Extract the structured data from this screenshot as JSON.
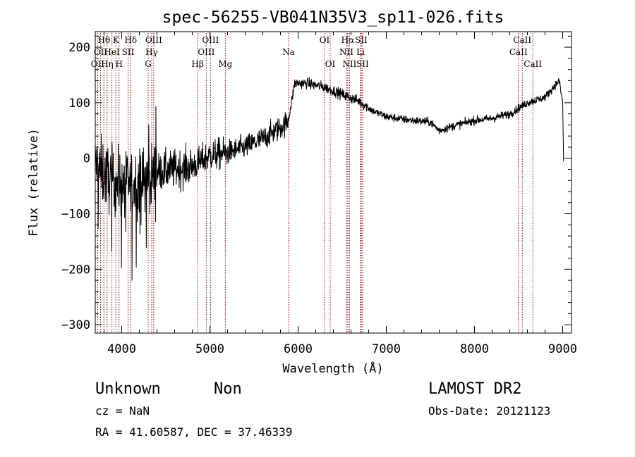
{
  "chart_data": {
    "type": "line",
    "title": "spec-56255-VB041N35V3_sp11-026.fits",
    "xlabel": "Wavelength (Å)",
    "ylabel": "Flux (relative)",
    "xlim": [
      3700,
      9100
    ],
    "ylim": [
      -315,
      228
    ],
    "x_ticks": [
      4000,
      5000,
      6000,
      7000,
      8000,
      9000
    ],
    "y_ticks": [
      -300,
      -200,
      -100,
      0,
      100,
      200
    ],
    "x_tick_labels": [
      "4000",
      "5000",
      "6000",
      "7000",
      "8000",
      "9000"
    ],
    "y_tick_labels": [
      "−300",
      "−200",
      "−100",
      "0",
      "100",
      "200"
    ],
    "grid": false,
    "series": [
      {
        "color": "#000000",
        "anchors": [
          [
            3700,
            -10
          ],
          [
            3800,
            -30
          ],
          [
            3900,
            -40
          ],
          [
            4000,
            -50
          ],
          [
            4200,
            -45
          ],
          [
            4400,
            -25
          ],
          [
            4600,
            -20
          ],
          [
            4800,
            -15
          ],
          [
            5000,
            5
          ],
          [
            5200,
            10
          ],
          [
            5400,
            20
          ],
          [
            5600,
            35
          ],
          [
            5800,
            55
          ],
          [
            5880,
            65
          ],
          [
            5920,
            95
          ],
          [
            5960,
            135
          ],
          [
            6100,
            135
          ],
          [
            6300,
            128
          ],
          [
            6500,
            115
          ],
          [
            6700,
            102
          ],
          [
            6850,
            85
          ],
          [
            7000,
            75
          ],
          [
            7200,
            70
          ],
          [
            7500,
            65
          ],
          [
            7600,
            50
          ],
          [
            7800,
            60
          ],
          [
            8000,
            68
          ],
          [
            8200,
            72
          ],
          [
            8400,
            80
          ],
          [
            8600,
            100
          ],
          [
            8800,
            110
          ],
          [
            8960,
            140
          ],
          [
            9000,
            100
          ],
          [
            9010,
            -5
          ]
        ],
        "noise_segments": [
          [
            3700,
            4400,
            55
          ],
          [
            4400,
            4800,
            32
          ],
          [
            4800,
            5200,
            26
          ],
          [
            5200,
            5900,
            20
          ],
          [
            5900,
            6800,
            9
          ],
          [
            6800,
            9010,
            7
          ]
        ]
      }
    ],
    "spectral_lines": [
      {
        "x": 3727,
        "label": "OII",
        "row": 3,
        "color": "#8b0000"
      },
      {
        "x": 3760,
        "label": "OII",
        "row": 2,
        "color": "#8b0000"
      },
      {
        "x": 3798,
        "label": "Hθ",
        "row": 1,
        "color": "#8b0000"
      },
      {
        "x": 3835,
        "label": "Hη",
        "row": 3,
        "color": "#8b0000"
      },
      {
        "x": 3889,
        "label": "HeI",
        "row": 2,
        "color": "#8b0000"
      },
      {
        "x": 3934,
        "label": "K",
        "row": 1,
        "color": "#8b0000"
      },
      {
        "x": 3970,
        "label": "H",
        "row": 3,
        "color": "#8b0000"
      },
      {
        "x": 4072,
        "label": "SII",
        "row": 2,
        "color": "#8b0000"
      },
      {
        "x": 4102,
        "label": "Hδ",
        "row": 1,
        "color": "#8b0000"
      },
      {
        "x": 4300,
        "label": "G",
        "row": 3,
        "color": "#8b0000"
      },
      {
        "x": 4340,
        "label": "Hγ",
        "row": 2,
        "color": "#8b0000"
      },
      {
        "x": 4363,
        "label": "OIII",
        "row": 1,
        "color": "#8b0000"
      },
      {
        "x": 4861,
        "label": "Hβ",
        "row": 3,
        "color": "#8b0000"
      },
      {
        "x": 4959,
        "label": "OIII",
        "row": 2,
        "color": "#8b0000"
      },
      {
        "x": 5007,
        "label": "OIII",
        "row": 1,
        "color": "#8b0000"
      },
      {
        "x": 5175,
        "label": "Mg",
        "row": 3,
        "color": "#8b0000"
      },
      {
        "x": 5893,
        "label": "Na",
        "row": 2,
        "color": "#8b0000"
      },
      {
        "x": 6300,
        "label": "OI",
        "row": 1,
        "color": "#8b0000"
      },
      {
        "x": 6364,
        "label": "OI",
        "row": 3,
        "color": "#8b0000"
      },
      {
        "x": 6548,
        "label": "NII",
        "row": 2,
        "color": "#8b0000"
      },
      {
        "x": 6563,
        "label": "Hα",
        "row": 1,
        "color": "#8b0000"
      },
      {
        "x": 6583,
        "label": "NII",
        "row": 3,
        "color": "#8b0000"
      },
      {
        "x": 6708,
        "label": "Li",
        "row": 2,
        "color": "#8b0000"
      },
      {
        "x": 6716,
        "label": "SII",
        "row": 1,
        "color": "#8b0000"
      },
      {
        "x": 6731,
        "label": "SII",
        "row": 3,
        "color": "#8b0000"
      },
      {
        "x": 8498,
        "label": "CaII",
        "row": 2,
        "color": "#8b0000"
      },
      {
        "x": 8542,
        "label": "CaII",
        "row": 1,
        "color": "#8b0000"
      },
      {
        "x": 8662,
        "label": "CaII",
        "row": 3,
        "color": "#8b0000"
      }
    ]
  },
  "info": {
    "object_class": "Unknown",
    "subclass": "Non",
    "survey": "LAMOST DR2",
    "redshift": "cz = NaN",
    "obs_date": "Obs-Date: 20121123",
    "coordinates": "RA =  41.60587, DEC =  37.46339"
  }
}
